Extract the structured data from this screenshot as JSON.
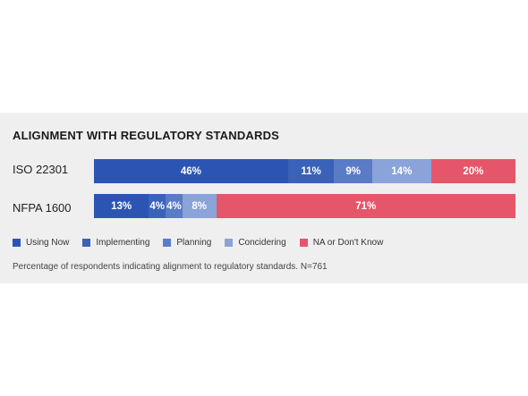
{
  "chart_data": {
    "type": "bar",
    "orientation": "horizontal",
    "stacked": true,
    "title": "ALIGNMENT WITH REGULATORY STANDARDS",
    "categories": [
      "ISO 22301",
      "NFPA 1600"
    ],
    "series": [
      {
        "name": "Using Now",
        "color": "#2c55b3",
        "values": [
          46,
          13
        ],
        "labels": [
          "46%",
          "13%"
        ]
      },
      {
        "name": "Implementing",
        "color": "#3a62b8",
        "values": [
          11,
          4
        ],
        "labels": [
          "11%",
          "4%"
        ]
      },
      {
        "name": "Planning",
        "color": "#5a7bc6",
        "values": [
          9,
          4
        ],
        "labels": [
          "9%",
          "4%"
        ]
      },
      {
        "name": "Concidering",
        "color": "#8aa3d8",
        "values": [
          14,
          8
        ],
        "labels": [
          "14%",
          "8%"
        ]
      },
      {
        "name": "NA or Don't Know",
        "color": "#e5566a",
        "values": [
          20,
          71
        ],
        "labels": [
          "20%",
          "71%"
        ]
      }
    ],
    "legend_position": "bottom",
    "grid": false
  },
  "footnote": "Percentage of respondents indicating alignment to regulatory standards.  N=761"
}
